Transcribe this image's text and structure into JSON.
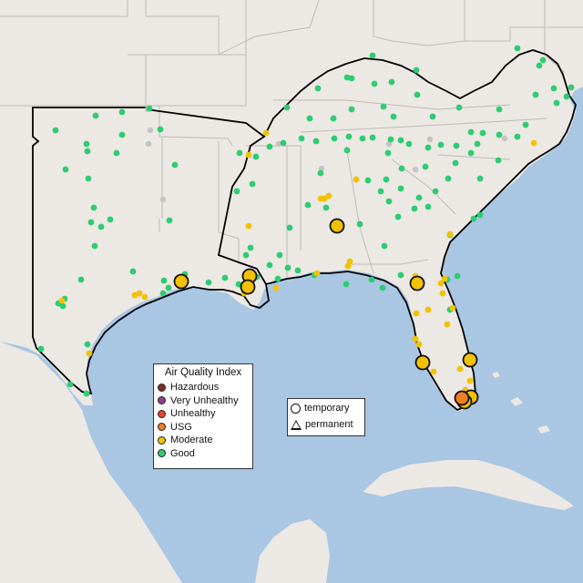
{
  "legend": {
    "title": "Air Quality Index",
    "categories": [
      {
        "label": "Hazardous",
        "color": "#7e2d25"
      },
      {
        "label": "Very Unhealthy",
        "color": "#8f3f97"
      },
      {
        "label": "Unhealthy",
        "color": "#e8432f"
      },
      {
        "label": "USG",
        "color": "#ef7d22"
      },
      {
        "label": "Moderate",
        "color": "#f2c200"
      },
      {
        "label": "Good",
        "color": "#2ecc71"
      }
    ]
  },
  "monitor_types": {
    "temporary": "temporary",
    "permanent": "permanent"
  },
  "colors": {
    "ocean": "#a9c6e3",
    "land": "#ece8e3",
    "state_border": "#bdbcbb",
    "region_outline": "#000000",
    "no_data_gray": "#c4c4c4"
  }
}
